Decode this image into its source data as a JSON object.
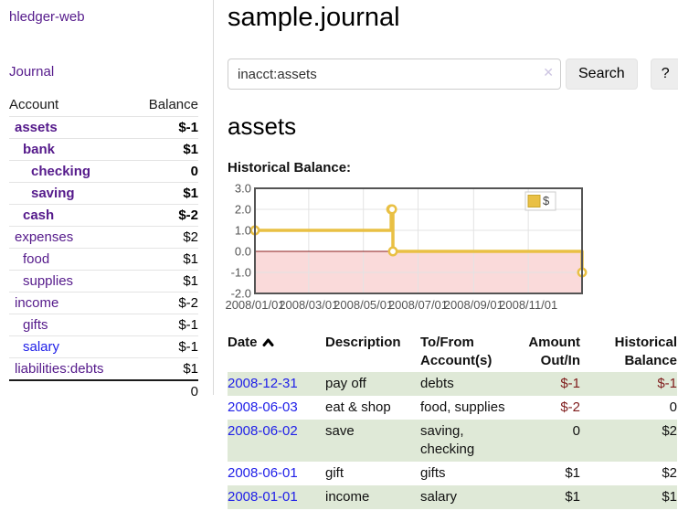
{
  "app": {
    "brand": "hledger-web",
    "nav_journal": "Journal"
  },
  "colors": {
    "link_purple": "#551a8b",
    "link_blue": "#2121e8",
    "negative": "#7f1c1c",
    "negative_dim": "#b5706f",
    "row_green": "#dfe9d7",
    "chart_line_gold": "#e9c044",
    "chart_negative_bg": "#fadada",
    "zero_line": "#8b1c1c"
  },
  "icons": {
    "clear_search": "x-mark",
    "date_sort": "chevron-up"
  },
  "sidebar": {
    "header": {
      "account": "Account",
      "balance": "Balance"
    },
    "accounts": [
      {
        "name": "assets",
        "depth": 0,
        "bold": true,
        "balance": "$-1",
        "neg": true
      },
      {
        "name": "bank",
        "depth": 1,
        "bold": true,
        "balance": "$1"
      },
      {
        "name": "checking",
        "depth": 2,
        "bold": true,
        "balance": "0"
      },
      {
        "name": "saving",
        "depth": 2,
        "bold": true,
        "balance": "$1"
      },
      {
        "name": "cash",
        "depth": 1,
        "bold": true,
        "balance": "$-2",
        "neg": true
      },
      {
        "name": "expenses",
        "depth": 0,
        "balance": "$2"
      },
      {
        "name": "food",
        "depth": 1,
        "balance": "$1"
      },
      {
        "name": "supplies",
        "depth": 1,
        "balance": "$1"
      },
      {
        "name": "income",
        "depth": 0,
        "balance": "$-2",
        "negdim": true
      },
      {
        "name": "gifts",
        "depth": 1,
        "balance": "$-1",
        "negdim": true
      },
      {
        "name": "salary",
        "depth": 1,
        "blue": true,
        "balance": "$-1",
        "negdim": true
      },
      {
        "name": "liabilities:debts",
        "depth": 0,
        "balance": "$1"
      }
    ],
    "total": "0"
  },
  "header": {
    "title": "sample.journal"
  },
  "search": {
    "value": "inacct:assets",
    "clear_icon": "✕",
    "button": "Search",
    "help": "?"
  },
  "account_page": {
    "title": "assets",
    "chart_label": "Historical Balance:"
  },
  "chart_data": {
    "type": "line",
    "step": true,
    "title": "Historical Balance",
    "series": [
      {
        "name": "$",
        "color": "#e9c044",
        "points": [
          [
            "2008-01-01",
            1
          ],
          [
            "2008-06-01",
            2
          ],
          [
            "2008-06-02",
            2
          ],
          [
            "2008-06-03",
            0
          ],
          [
            "2008-12-31",
            -1
          ]
        ]
      }
    ],
    "ylim": [
      -2,
      3
    ],
    "yticks": [
      3,
      2,
      1,
      0,
      -1,
      -2
    ],
    "xticks": [
      "2008/01/01",
      "2008/03/01",
      "2008/05/01",
      "2008/07/01",
      "2008/09/01",
      "2008/11/01"
    ],
    "grid": true,
    "legend_position": "top-right",
    "negative_region_color": "#fadada",
    "zero_line_color": "#8b1c1c"
  },
  "register": {
    "columns": {
      "date": "Date",
      "description": "Description",
      "accounts": "To/From Account(s)",
      "amount": "Amount Out/In",
      "balance": "Historical Balance"
    },
    "rows": [
      {
        "date": "2008-12-31",
        "description": "pay off",
        "accounts": "debts",
        "amount": "$-1",
        "amount_neg": true,
        "balance": "$-1",
        "balance_neg": true
      },
      {
        "date": "2008-06-03",
        "description": "eat & shop",
        "accounts": "food, supplies",
        "amount": "$-2",
        "amount_neg": true,
        "balance": "0"
      },
      {
        "date": "2008-06-02",
        "description": "save",
        "accounts": "saving, checking",
        "amount": "0",
        "balance": "$2"
      },
      {
        "date": "2008-06-01",
        "description": "gift",
        "accounts": "gifts",
        "amount": "$1",
        "balance": "$2"
      },
      {
        "date": "2008-01-01",
        "description": "income",
        "accounts": "salary",
        "amount": "$1",
        "balance": "$1"
      }
    ]
  }
}
